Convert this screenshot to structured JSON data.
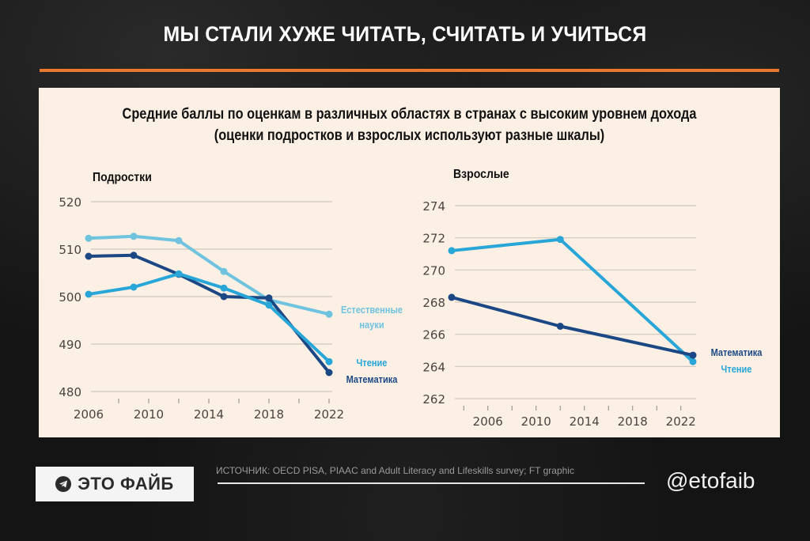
{
  "header": {
    "title": "МЫ СТАЛИ ХУЖЕ ЧИТАТЬ, СЧИТАТЬ И УЧИТЬСЯ",
    "accent_color": "#e8782f"
  },
  "panel": {
    "title_line1": "Средние баллы по оценкам в различных областях в странах с высоким уровнем дохода",
    "title_line2": "(оценки подростков и взрослых используют разные шкалы)"
  },
  "colors": {
    "science": "#6fc3df",
    "reading": "#29a6d8",
    "math": "#1b4884",
    "grid": "#cfc6bd",
    "axis_text": "#4a4440"
  },
  "chart_data": [
    {
      "type": "line",
      "title": "Подростки",
      "xlabel": "",
      "ylabel": "",
      "ylim": [
        480,
        520
      ],
      "yticks": [
        480,
        490,
        500,
        510,
        520
      ],
      "xlim": [
        2006,
        2022
      ],
      "xticks": [
        2006,
        2010,
        2014,
        2018,
        2022
      ],
      "grid": true,
      "x": [
        2006,
        2009,
        2012,
        2015,
        2018,
        2022
      ],
      "series": [
        {
          "name": "Естественные науки",
          "label_lines": [
            "Естественные",
            "науки"
          ],
          "color_key": "science",
          "values": [
            512.3,
            512.7,
            511.8,
            505.3,
            499.3,
            496.3
          ]
        },
        {
          "name": "Математика",
          "label_lines": [
            "Математика"
          ],
          "color_key": "math",
          "values": [
            508.5,
            508.7,
            504.7,
            500.0,
            499.7,
            484.0
          ]
        },
        {
          "name": "Чтение",
          "label_lines": [
            "Чтение"
          ],
          "color_key": "reading",
          "values": [
            500.5,
            502.0,
            504.8,
            501.8,
            498.2,
            486.3
          ]
        }
      ]
    },
    {
      "type": "line",
      "title": "Взрослые",
      "xlabel": "",
      "ylabel": "",
      "ylim": [
        262,
        274
      ],
      "yticks": [
        262,
        264,
        266,
        268,
        270,
        272,
        274
      ],
      "xlim": [
        2003,
        2023
      ],
      "xticks": [
        2006,
        2010,
        2014,
        2018,
        2022
      ],
      "grid": true,
      "x": [
        2003,
        2012,
        2023
      ],
      "series": [
        {
          "name": "Чтение",
          "label_lines": [
            "Чтение"
          ],
          "color_key": "reading",
          "values": [
            271.2,
            271.9,
            264.3
          ]
        },
        {
          "name": "Математика",
          "label_lines": [
            "Математика"
          ],
          "color_key": "math",
          "values": [
            268.3,
            266.5,
            264.7
          ]
        }
      ]
    }
  ],
  "footer": {
    "badge_label": "ЭТО ФАЙБ",
    "badge_icon": "telegram-icon",
    "source": "ИСТОЧНИК: OECD PISA, PIAAC and Adult Literacy and Lifeskills survey; FT graphic",
    "handle": "@etofaib"
  }
}
